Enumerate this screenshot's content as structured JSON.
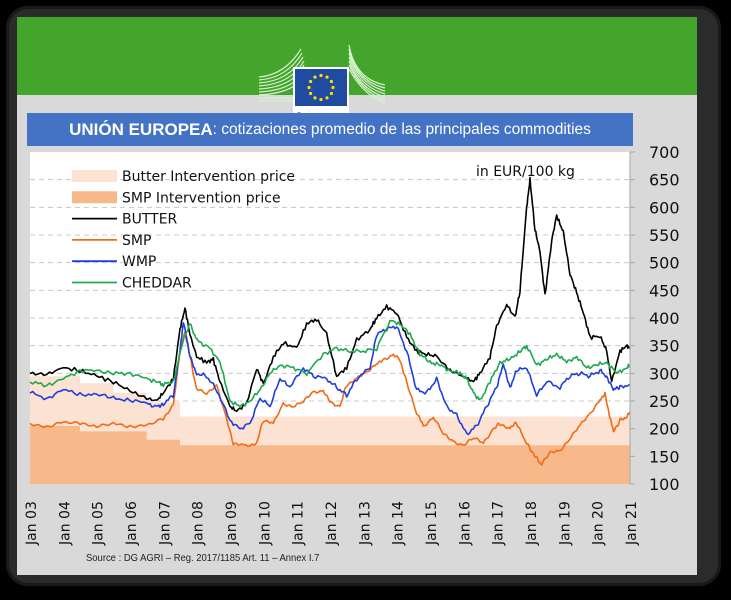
{
  "header": {
    "logo_alt": "European Commission",
    "logo_line1": "European",
    "logo_line2": "Commission",
    "banner_color": "#43a52b"
  },
  "title": {
    "bold": "UNIÓN EUROPEA",
    "rest": ": cotizaciones promedio de las principales commodities",
    "bg_color": "#4472c4"
  },
  "source": "Source : DG AGRI – Reg. 2017/1185 Art. 11 – Annex I.7",
  "chart_data": {
    "type": "line",
    "title": "UNIÓN EUROPEA: cotizaciones promedio de las principales commodities",
    "annotation": "in EUR/100 kg",
    "ylabel": "EUR/100 kg",
    "xlabel": "",
    "ylim": [
      100,
      700
    ],
    "yticks": [
      100,
      150,
      200,
      250,
      300,
      350,
      400,
      450,
      500,
      550,
      600,
      650,
      700
    ],
    "xlim": [
      2003,
      2021
    ],
    "xticks": [
      "Jan 03",
      "Jan 04",
      "Jan 05",
      "Jan 06",
      "Jan 07",
      "Jan 08",
      "Jan 09",
      "Jan 10",
      "Jan 11",
      "Jan 12",
      "Jan 13",
      "Jan 14",
      "Jan 15",
      "Jan 16",
      "Jan 17",
      "Jan 18",
      "Jan 19",
      "Jan 20",
      "Jan 21"
    ],
    "grid": "horizontal-dashed",
    "legend_position": "top-left",
    "areas": [
      {
        "name": "Butter Intervention price",
        "color": "#fbe2d2",
        "steps": [
          [
            2003,
            295
          ],
          [
            2004.5,
            282
          ],
          [
            2005.5,
            265
          ],
          [
            2006.5,
            248
          ],
          [
            2007.5,
            222
          ],
          [
            2021,
            222
          ]
        ]
      },
      {
        "name": "SMP Intervention price",
        "color": "#f8b98a",
        "steps": [
          [
            2003,
            205
          ],
          [
            2004.5,
            195
          ],
          [
            2006.5,
            180
          ],
          [
            2007.5,
            170
          ],
          [
            2021,
            170
          ]
        ]
      }
    ],
    "series": [
      {
        "name": "BUTTER",
        "color": "#000000",
        "points": [
          [
            2003,
            300
          ],
          [
            2003.5,
            298
          ],
          [
            2004,
            310
          ],
          [
            2004.5,
            305
          ],
          [
            2005,
            295
          ],
          [
            2005.5,
            285
          ],
          [
            2006,
            268
          ],
          [
            2006.5,
            255
          ],
          [
            2006.8,
            250
          ],
          [
            2007,
            265
          ],
          [
            2007.3,
            290
          ],
          [
            2007.5,
            380
          ],
          [
            2007.65,
            418
          ],
          [
            2007.8,
            370
          ],
          [
            2008,
            330
          ],
          [
            2008.3,
            320
          ],
          [
            2008.5,
            325
          ],
          [
            2008.7,
            285
          ],
          [
            2009,
            240
          ],
          [
            2009.2,
            232
          ],
          [
            2009.5,
            245
          ],
          [
            2009.8,
            310
          ],
          [
            2010,
            280
          ],
          [
            2010.3,
            330
          ],
          [
            2010.6,
            355
          ],
          [
            2011,
            345
          ],
          [
            2011.3,
            390
          ],
          [
            2011.6,
            398
          ],
          [
            2011.9,
            370
          ],
          [
            2012.2,
            295
          ],
          [
            2012.5,
            310
          ],
          [
            2012.8,
            360
          ],
          [
            2013.2,
            380
          ],
          [
            2013.4,
            400
          ],
          [
            2013.7,
            420
          ],
          [
            2014,
            410
          ],
          [
            2014.3,
            365
          ],
          [
            2014.6,
            340
          ],
          [
            2014.9,
            335
          ],
          [
            2015.2,
            330
          ],
          [
            2015.6,
            305
          ],
          [
            2016,
            295
          ],
          [
            2016.3,
            285
          ],
          [
            2016.5,
            300
          ],
          [
            2016.8,
            330
          ],
          [
            2017,
            385
          ],
          [
            2017.3,
            425
          ],
          [
            2017.55,
            400
          ],
          [
            2017.7,
            450
          ],
          [
            2017.9,
            600
          ],
          [
            2018.0,
            650
          ],
          [
            2018.15,
            560
          ],
          [
            2018.3,
            520
          ],
          [
            2018.45,
            440
          ],
          [
            2018.65,
            540
          ],
          [
            2018.8,
            585
          ],
          [
            2019.0,
            555
          ],
          [
            2019.2,
            480
          ],
          [
            2019.4,
            445
          ],
          [
            2019.6,
            410
          ],
          [
            2019.8,
            365
          ],
          [
            2020.1,
            368
          ],
          [
            2020.3,
            340
          ],
          [
            2020.45,
            285
          ],
          [
            2020.7,
            340
          ],
          [
            2020.9,
            350
          ],
          [
            2021,
            345
          ]
        ]
      },
      {
        "name": "SMP",
        "color": "#f26b15",
        "points": [
          [
            2003,
            210
          ],
          [
            2003.5,
            205
          ],
          [
            2004,
            212
          ],
          [
            2004.5,
            208
          ],
          [
            2005,
            202
          ],
          [
            2005.5,
            210
          ],
          [
            2006,
            205
          ],
          [
            2006.5,
            208
          ],
          [
            2007,
            218
          ],
          [
            2007.3,
            240
          ],
          [
            2007.5,
            340
          ],
          [
            2007.65,
            375
          ],
          [
            2007.8,
            330
          ],
          [
            2008,
            270
          ],
          [
            2008.3,
            265
          ],
          [
            2008.6,
            280
          ],
          [
            2008.9,
            215
          ],
          [
            2009.1,
            172
          ],
          [
            2009.4,
            168
          ],
          [
            2009.8,
            172
          ],
          [
            2010,
            215
          ],
          [
            2010.3,
            208
          ],
          [
            2010.6,
            245
          ],
          [
            2010.9,
            242
          ],
          [
            2011.2,
            248
          ],
          [
            2011.5,
            265
          ],
          [
            2011.8,
            270
          ],
          [
            2012,
            250
          ],
          [
            2012.3,
            240
          ],
          [
            2012.5,
            280
          ],
          [
            2012.8,
            290
          ],
          [
            2013.1,
            300
          ],
          [
            2013.4,
            320
          ],
          [
            2013.6,
            325
          ],
          [
            2013.9,
            335
          ],
          [
            2014.1,
            325
          ],
          [
            2014.3,
            285
          ],
          [
            2014.6,
            230
          ],
          [
            2014.8,
            205
          ],
          [
            2015.1,
            220
          ],
          [
            2015.4,
            190
          ],
          [
            2015.7,
            178
          ],
          [
            2016,
            170
          ],
          [
            2016.3,
            182
          ],
          [
            2016.6,
            175
          ],
          [
            2016.9,
            200
          ],
          [
            2017.1,
            210
          ],
          [
            2017.4,
            200
          ],
          [
            2017.6,
            210
          ],
          [
            2017.8,
            185
          ],
          [
            2018.0,
            165
          ],
          [
            2018.2,
            148
          ],
          [
            2018.35,
            135
          ],
          [
            2018.6,
            155
          ],
          [
            2018.9,
            160
          ],
          [
            2019.2,
            185
          ],
          [
            2019.5,
            205
          ],
          [
            2019.8,
            225
          ],
          [
            2020.1,
            255
          ],
          [
            2020.25,
            262
          ],
          [
            2020.4,
            220
          ],
          [
            2020.5,
            195
          ],
          [
            2020.7,
            215
          ],
          [
            2020.9,
            220
          ],
          [
            2021,
            230
          ]
        ]
      },
      {
        "name": "WMP",
        "color": "#1f3fdc",
        "points": [
          [
            2003,
            265
          ],
          [
            2003.5,
            255
          ],
          [
            2004,
            270
          ],
          [
            2004.5,
            262
          ],
          [
            2005,
            262
          ],
          [
            2005.5,
            255
          ],
          [
            2006,
            252
          ],
          [
            2006.5,
            245
          ],
          [
            2006.8,
            240
          ],
          [
            2007,
            245
          ],
          [
            2007.3,
            260
          ],
          [
            2007.5,
            340
          ],
          [
            2007.6,
            395
          ],
          [
            2007.8,
            330
          ],
          [
            2008,
            300
          ],
          [
            2008.3,
            295
          ],
          [
            2008.6,
            270
          ],
          [
            2009,
            215
          ],
          [
            2009.3,
            200
          ],
          [
            2009.6,
            210
          ],
          [
            2009.9,
            255
          ],
          [
            2010.2,
            240
          ],
          [
            2010.5,
            290
          ],
          [
            2010.8,
            275
          ],
          [
            2011.2,
            310
          ],
          [
            2011.5,
            295
          ],
          [
            2011.9,
            290
          ],
          [
            2012.2,
            275
          ],
          [
            2012.5,
            260
          ],
          [
            2012.8,
            290
          ],
          [
            2013.2,
            310
          ],
          [
            2013.4,
            370
          ],
          [
            2013.7,
            380
          ],
          [
            2014,
            385
          ],
          [
            2014.3,
            340
          ],
          [
            2014.6,
            270
          ],
          [
            2014.9,
            265
          ],
          [
            2015.2,
            290
          ],
          [
            2015.5,
            240
          ],
          [
            2015.8,
            225
          ],
          [
            2016.1,
            190
          ],
          [
            2016.4,
            205
          ],
          [
            2016.7,
            240
          ],
          [
            2017.0,
            275
          ],
          [
            2017.2,
            315
          ],
          [
            2017.4,
            275
          ],
          [
            2017.6,
            305
          ],
          [
            2017.9,
            310
          ],
          [
            2018.2,
            260
          ],
          [
            2018.5,
            285
          ],
          [
            2018.9,
            275
          ],
          [
            2019.2,
            295
          ],
          [
            2019.5,
            300
          ],
          [
            2019.8,
            295
          ],
          [
            2020.1,
            305
          ],
          [
            2020.3,
            295
          ],
          [
            2020.5,
            270
          ],
          [
            2020.7,
            275
          ],
          [
            2021,
            280
          ]
        ]
      },
      {
        "name": "CHEDDAR",
        "color": "#1fa84f",
        "points": [
          [
            2003,
            285
          ],
          [
            2003.5,
            278
          ],
          [
            2004,
            290
          ],
          [
            2004.5,
            305
          ],
          [
            2005,
            305
          ],
          [
            2005.5,
            300
          ],
          [
            2006,
            300
          ],
          [
            2006.5,
            290
          ],
          [
            2006.8,
            285
          ],
          [
            2007,
            280
          ],
          [
            2007.3,
            285
          ],
          [
            2007.6,
            360
          ],
          [
            2007.8,
            390
          ],
          [
            2008,
            360
          ],
          [
            2008.4,
            345
          ],
          [
            2008.7,
            320
          ],
          [
            2009,
            250
          ],
          [
            2009.3,
            240
          ],
          [
            2009.6,
            250
          ],
          [
            2009.9,
            270
          ],
          [
            2010.2,
            300
          ],
          [
            2010.5,
            315
          ],
          [
            2010.9,
            310
          ],
          [
            2011.3,
            300
          ],
          [
            2011.8,
            335
          ],
          [
            2012.2,
            345
          ],
          [
            2012.6,
            340
          ],
          [
            2013,
            340
          ],
          [
            2013.4,
            345
          ],
          [
            2013.8,
            395
          ],
          [
            2014.1,
            390
          ],
          [
            2014.4,
            370
          ],
          [
            2014.7,
            335
          ],
          [
            2015.0,
            320
          ],
          [
            2015.3,
            315
          ],
          [
            2015.6,
            305
          ],
          [
            2015.9,
            300
          ],
          [
            2016.1,
            290
          ],
          [
            2016.3,
            265
          ],
          [
            2016.5,
            250
          ],
          [
            2016.8,
            285
          ],
          [
            2017.1,
            320
          ],
          [
            2017.4,
            325
          ],
          [
            2017.7,
            340
          ],
          [
            2017.9,
            350
          ],
          [
            2018.2,
            315
          ],
          [
            2018.5,
            325
          ],
          [
            2018.8,
            335
          ],
          [
            2019.1,
            320
          ],
          [
            2019.4,
            330
          ],
          [
            2019.7,
            310
          ],
          [
            2020.0,
            315
          ],
          [
            2020.3,
            320
          ],
          [
            2020.6,
            300
          ],
          [
            2020.9,
            310
          ],
          [
            2021,
            315
          ]
        ]
      }
    ]
  }
}
